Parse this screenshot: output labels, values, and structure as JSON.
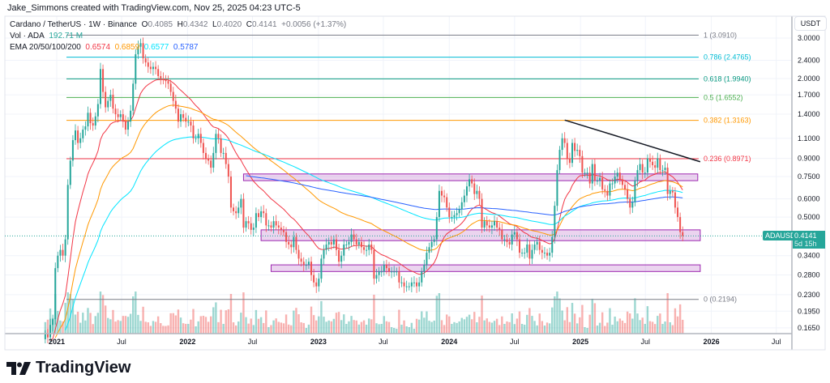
{
  "header": {
    "credit": "Jake_Simmons created with TradingView.com, Nov 25, 2025 04:23 UTC-5",
    "symbol": "Cardano / TetherUS · 1W · Binance",
    "ohlc": {
      "o_label": "O",
      "o": "0.4085",
      "h_label": "H",
      "h": "0.4342",
      "l_label": "L",
      "l": "0.4020",
      "c_label": "C",
      "c": "0.4141",
      "change": "+0.0056 (+1.37%)"
    },
    "volume": {
      "label": "Vol · ADA",
      "value": "192.71 M",
      "color": "#26a69a"
    },
    "ema": {
      "label": "EMA 20/50/100/200",
      "values": [
        {
          "v": "0.6574",
          "color": "#f23645"
        },
        {
          "v": "0.6859",
          "color": "#ff9800"
        },
        {
          "v": "0.6577",
          "color": "#00e5ff"
        },
        {
          "v": "0.5787",
          "color": "#2962ff"
        }
      ]
    }
  },
  "price_axis": {
    "unit": "USDT",
    "ticks": [
      "3.0000",
      "2.4000",
      "2.0000",
      "1.7000",
      "1.4000",
      "1.1000",
      "0.9000",
      "0.7500",
      "0.6000",
      "0.5000",
      "0.3400",
      "0.2800",
      "0.2300",
      "0.1950",
      "0.1650"
    ]
  },
  "time_axis": {
    "ticks": [
      {
        "label": "2021",
        "date": "2021-01-01",
        "bold": true
      },
      {
        "label": "Jul",
        "date": "2021-07-01"
      },
      {
        "label": "2022",
        "date": "2022-01-01",
        "bold": true
      },
      {
        "label": "Jul",
        "date": "2022-07-01"
      },
      {
        "label": "2023",
        "date": "2023-01-01",
        "bold": true
      },
      {
        "label": "Jul",
        "date": "2023-07-01"
      },
      {
        "label": "2024",
        "date": "2024-01-01",
        "bold": true
      },
      {
        "label": "Jul",
        "date": "2024-07-01"
      },
      {
        "label": "2025",
        "date": "2025-01-01",
        "bold": true
      },
      {
        "label": "Jul",
        "date": "2025-07-01"
      },
      {
        "label": "2026",
        "date": "2026-01-01",
        "bold": true
      },
      {
        "label": "Jul",
        "date": "2026-07-01"
      }
    ]
  },
  "last_price": {
    "symbol": "ADAUSDT",
    "price": "0.4141",
    "countdown": "5d 15h",
    "color": "#26a69a"
  },
  "branding": {
    "logo_text": "TradingView"
  },
  "chart_data": {
    "type": "candlestick",
    "symbol": "ADAUSDT",
    "interval": "1W",
    "start": "2020-11-30",
    "scale": "log",
    "ylim": [
      0.165,
      3.0
    ],
    "colors": {
      "up": "#26a69a",
      "down": "#ef5350"
    },
    "closes": [
      0.155,
      0.15,
      0.17,
      0.18,
      0.3,
      0.34,
      0.36,
      0.34,
      0.4,
      0.69,
      0.88,
      1.08,
      1.19,
      1.05,
      1.1,
      1.2,
      1.24,
      1.42,
      1.28,
      1.25,
      1.37,
      1.55,
      2.2,
      1.75,
      1.5,
      1.6,
      1.7,
      1.48,
      1.4,
      1.36,
      1.4,
      1.3,
      1.2,
      1.3,
      1.45,
      1.9,
      2.55,
      2.75,
      2.85,
      2.45,
      2.35,
      2.25,
      2.2,
      2.25,
      2.2,
      2.05,
      2.0,
      1.98,
      1.95,
      1.9,
      1.75,
      1.6,
      1.48,
      1.3,
      1.4,
      1.35,
      1.3,
      1.3,
      1.25,
      1.1,
      1.1,
      1.15,
      1.05,
      0.95,
      0.9,
      0.88,
      0.82,
      0.95,
      1.15,
      1.1,
      0.95,
      0.95,
      0.85,
      0.75,
      0.55,
      0.53,
      0.52,
      0.55,
      0.6,
      0.45,
      0.48,
      0.47,
      0.44,
      0.45,
      0.52,
      0.5,
      0.53,
      0.52,
      0.46,
      0.46,
      0.45,
      0.48,
      0.46,
      0.45,
      0.44,
      0.43,
      0.39,
      0.38,
      0.37,
      0.41,
      0.36,
      0.33,
      0.32,
      0.31,
      0.31,
      0.32,
      0.28,
      0.26,
      0.25,
      0.27,
      0.33,
      0.36,
      0.38,
      0.39,
      0.38,
      0.4,
      0.36,
      0.32,
      0.34,
      0.38,
      0.38,
      0.39,
      0.42,
      0.4,
      0.38,
      0.39,
      0.37,
      0.36,
      0.36,
      0.38,
      0.36,
      0.27,
      0.28,
      0.29,
      0.29,
      0.31,
      0.3,
      0.29,
      0.29,
      0.29,
      0.29,
      0.26,
      0.26,
      0.25,
      0.25,
      0.25,
      0.26,
      0.26,
      0.25,
      0.26,
      0.29,
      0.31,
      0.35,
      0.37,
      0.39,
      0.4,
      0.5,
      0.65,
      0.62,
      0.61,
      0.55,
      0.5,
      0.5,
      0.51,
      0.52,
      0.54,
      0.58,
      0.62,
      0.68,
      0.73,
      0.7,
      0.63,
      0.65,
      0.6,
      0.45,
      0.48,
      0.46,
      0.45,
      0.46,
      0.48,
      0.45,
      0.44,
      0.4,
      0.4,
      0.39,
      0.38,
      0.42,
      0.43,
      0.4,
      0.35,
      0.35,
      0.35,
      0.38,
      0.33,
      0.36,
      0.38,
      0.39,
      0.36,
      0.35,
      0.35,
      0.34,
      0.35,
      0.41,
      0.56,
      0.8,
      0.98,
      1.1,
      1.05,
      0.9,
      0.86,
      1.05,
      0.97,
      0.98,
      0.92,
      0.78,
      0.78,
      0.78,
      0.7,
      0.85,
      0.72,
      0.72,
      0.74,
      0.66,
      0.65,
      0.62,
      0.7,
      0.7,
      0.75,
      0.78,
      0.73,
      0.69,
      0.66,
      0.6,
      0.55,
      0.58,
      0.72,
      0.8,
      0.85,
      0.78,
      0.78,
      0.9,
      0.87,
      0.84,
      0.82,
      0.9,
      0.8,
      0.8,
      0.82,
      0.63,
      0.65,
      0.64,
      0.55,
      0.5,
      0.43,
      0.4141
    ],
    "indicators": [
      {
        "name": "EMA 20",
        "period": 20,
        "color": "#f23645"
      },
      {
        "name": "EMA 50",
        "period": 50,
        "color": "#ff9800"
      },
      {
        "name": "EMA 100",
        "period": 100,
        "color": "#00e5ff"
      },
      {
        "name": "EMA 200",
        "period": 200,
        "color": "#2962ff"
      }
    ],
    "fib_levels": [
      {
        "label": "1 (3.0910)",
        "price": 3.091,
        "color": "#787b86"
      },
      {
        "label": "0.786 (2.4765)",
        "price": 2.4765,
        "color": "#00bcd4"
      },
      {
        "label": "0.618 (1.9940)",
        "price": 1.994,
        "color": "#089981"
      },
      {
        "label": "0.5 (1.6552)",
        "price": 1.6552,
        "color": "#4caf50"
      },
      {
        "label": "0.382 (1.3163)",
        "price": 1.3163,
        "color": "#ff9800"
      },
      {
        "label": "0.236 (0.8971)",
        "price": 0.8971,
        "color": "#f23645"
      },
      {
        "label": "0 (0.2194)",
        "price": 0.2194,
        "color": "#787b86"
      }
    ],
    "fib_range": {
      "from": "2021-02-01",
      "to": "2025-11-24"
    },
    "zones": [
      {
        "from": "2022-06-06",
        "to": "2025-11-24",
        "low": 0.72,
        "high": 0.77,
        "color": "#9c27b0"
      },
      {
        "from": "2022-07-25",
        "to": "2025-12-01",
        "low": 0.395,
        "high": 0.44,
        "color": "#9c27b0"
      },
      {
        "from": "2022-08-22",
        "to": "2025-12-01",
        "low": 0.29,
        "high": 0.31,
        "color": "#9c27b0"
      }
    ],
    "trendline": {
      "from": {
        "date": "2024-11-18",
        "price": 1.32
      },
      "to": {
        "date": "2025-12-01",
        "price": 0.87
      },
      "color": "#131722"
    }
  }
}
